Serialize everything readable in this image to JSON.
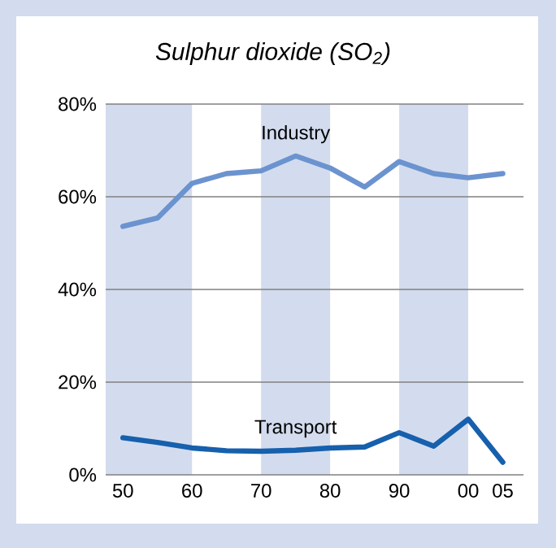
{
  "chart_data": {
    "type": "line",
    "title": "*Sulphur dioxide (SO$_{2}$)*",
    "x": [
      1950,
      1955,
      1960,
      1965,
      1970,
      1975,
      1980,
      1985,
      1990,
      1995,
      2000,
      2005
    ],
    "series": [
      {
        "name": "Industry",
        "color": "#6b93cf",
        "values": [
          53.6,
          55.4,
          62.9,
          65,
          65.6,
          68.8,
          66.2,
          62.1,
          67.6,
          65,
          64.1,
          65
        ]
      },
      {
        "name": "Transport",
        "color": "#1660ad",
        "values": [
          8,
          7,
          5.8,
          5.2,
          5.1,
          5.3,
          5.8,
          6,
          9.1,
          6.2,
          12,
          2.7
        ]
      }
    ],
    "xlim": [
      1947.5,
      2008
    ],
    "ylim": [
      0,
      80
    ],
    "xticks": [
      {
        "value": 1950,
        "label": "50"
      },
      {
        "value": 1960,
        "label": "60"
      },
      {
        "value": 1970,
        "label": "70"
      },
      {
        "value": 1980,
        "label": "80"
      },
      {
        "value": 1990,
        "label": "90"
      },
      {
        "value": 2000,
        "label": "00"
      },
      {
        "value": 2005,
        "label": "05"
      }
    ],
    "yticks": [
      {
        "value": 0,
        "label": "0%"
      },
      {
        "value": 20,
        "label": "20%"
      },
      {
        "value": 40,
        "label": "40%"
      },
      {
        "value": 60,
        "label": "60%"
      },
      {
        "value": 80,
        "label": "80%"
      }
    ],
    "bands": [
      {
        "axis": "x",
        "from": 1947.5,
        "to": 1960,
        "color": "#d3dcee"
      },
      {
        "axis": "x",
        "from": 1970,
        "to": 1980,
        "color": "#d3dcee"
      },
      {
        "axis": "x",
        "from": 1990,
        "to": 2000,
        "color": "#d3dcee"
      }
    ],
    "grid": "y",
    "legend": false,
    "marker": "none",
    "line_style": "solid"
  }
}
